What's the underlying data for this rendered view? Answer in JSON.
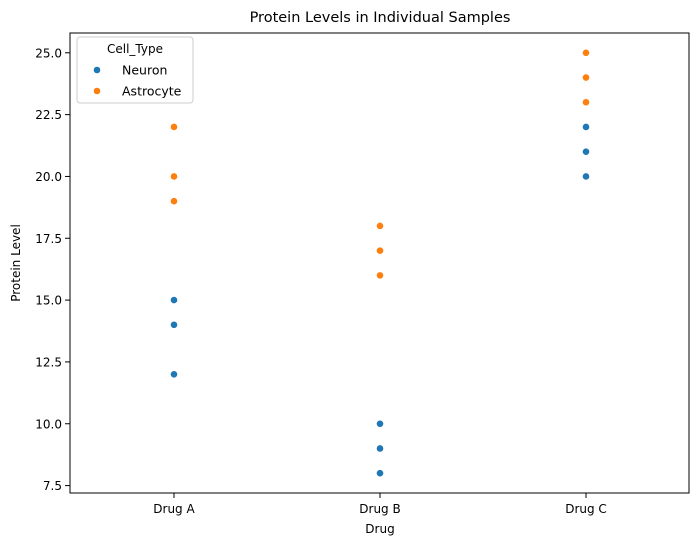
{
  "chart_data": {
    "type": "scatter",
    "title": "Protein Levels in Individual Samples",
    "xlabel": "Drug",
    "ylabel": "Protein Level",
    "categories": [
      "Drug A",
      "Drug B",
      "Drug C"
    ],
    "ylim": [
      7.2,
      25.8
    ],
    "yticks": [
      7.5,
      10.0,
      12.5,
      15.0,
      17.5,
      20.0,
      22.5,
      25.0
    ],
    "ytick_labels": [
      "7.5",
      "10.0",
      "12.5",
      "15.0",
      "17.5",
      "20.0",
      "22.5",
      "25.0"
    ],
    "grid": false,
    "legend": {
      "title": "Cell_Type",
      "placement": "upper-left"
    },
    "series": [
      {
        "name": "Neuron",
        "color": "#1f77b4",
        "points": [
          {
            "x": "Drug A",
            "y": 15
          },
          {
            "x": "Drug A",
            "y": 14
          },
          {
            "x": "Drug A",
            "y": 12
          },
          {
            "x": "Drug B",
            "y": 10
          },
          {
            "x": "Drug B",
            "y": 9
          },
          {
            "x": "Drug B",
            "y": 8
          },
          {
            "x": "Drug C",
            "y": 22
          },
          {
            "x": "Drug C",
            "y": 21
          },
          {
            "x": "Drug C",
            "y": 20
          }
        ]
      },
      {
        "name": "Astrocyte",
        "color": "#ff7f0e",
        "points": [
          {
            "x": "Drug A",
            "y": 22
          },
          {
            "x": "Drug A",
            "y": 20
          },
          {
            "x": "Drug A",
            "y": 19
          },
          {
            "x": "Drug B",
            "y": 18
          },
          {
            "x": "Drug B",
            "y": 17
          },
          {
            "x": "Drug B",
            "y": 16
          },
          {
            "x": "Drug C",
            "y": 25
          },
          {
            "x": "Drug C",
            "y": 24
          },
          {
            "x": "Drug C",
            "y": 23
          }
        ]
      }
    ]
  }
}
